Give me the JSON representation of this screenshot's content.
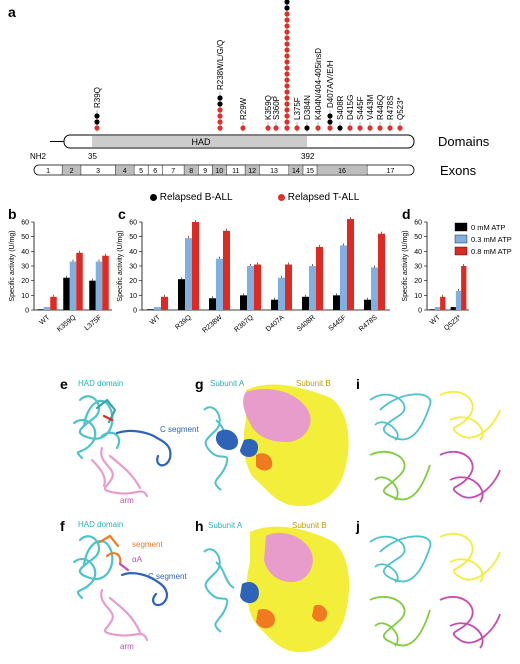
{
  "panels": {
    "a": "a",
    "b": "b",
    "c": "c",
    "d": "d",
    "e": "e",
    "f": "f",
    "g": "g",
    "h": "h",
    "i": "i",
    "j": "j"
  },
  "colors": {
    "b_all": "#000000",
    "t_all": "#e0302a",
    "atp0": "#000000",
    "atp03": "#7fb0e0",
    "atp08": "#dd2a22",
    "had_gray": "#cccccc",
    "exon_gray": "#bdbdbd",
    "cyan": "#4cc3c8",
    "yellow": "#f2ee3a",
    "pink": "#e79ccb",
    "blue": "#2f63b8",
    "orange": "#ef7a22",
    "green": "#7fcc3f",
    "magenta": "#c64ab0"
  },
  "panel_a": {
    "domains_label": "Domains",
    "exons_label": "Exons",
    "nh2": "NH2",
    "had": "HAD",
    "pos_start": "35",
    "pos_end": "392",
    "exons": [
      "1",
      "2",
      "3",
      "4",
      "5",
      "6",
      "7",
      "8",
      "9",
      "10",
      "11",
      "12",
      "13",
      "14",
      "15",
      "16",
      "17"
    ],
    "legend_b": "Relapsed B-ALL",
    "legend_t": "Relapsed T-ALL",
    "mutations": [
      {
        "label": "R39Q",
        "b": 2,
        "t": 1
      },
      {
        "label": "R238W/L/G/Q",
        "b": 2,
        "t": 4
      },
      {
        "label": "R29W",
        "b": 0,
        "t": 1
      },
      {
        "label": "K359Q",
        "b": 0,
        "t": 1
      },
      {
        "label": "S360P",
        "b": 0,
        "t": 1
      },
      {
        "label": "R367Q",
        "b": 14,
        "t": 20
      },
      {
        "label": "L375F",
        "b": 0,
        "t": 1
      },
      {
        "label": "D384N",
        "b": 1,
        "t": 0
      },
      {
        "label": "K404N/404-405insD",
        "b": 0,
        "t": 1
      },
      {
        "label": "D407A/V/E/H",
        "b": 2,
        "t": 1
      },
      {
        "label": "S408R",
        "b": 1,
        "t": 0
      },
      {
        "label": "D415G",
        "b": 0,
        "t": 1
      },
      {
        "label": "S445F",
        "b": 0,
        "t": 1
      },
      {
        "label": "V443M",
        "b": 0,
        "t": 1
      },
      {
        "label": "R446Q",
        "b": 0,
        "t": 1
      },
      {
        "label": "R478S",
        "b": 0,
        "t": 1
      },
      {
        "label": "Q523*",
        "b": 0,
        "t": 1
      }
    ]
  },
  "charts": {
    "ylabel": "Specific activity (U/mg)",
    "yticks": [
      "0",
      "10",
      "20",
      "30",
      "40",
      "50",
      "60"
    ],
    "legend": [
      "0 mM ATP",
      "0.3 mM ATP",
      "0.8 mM ATP"
    ]
  },
  "chart_data": [
    {
      "type": "bar",
      "panel": "b",
      "ylabel": "Specific activity (U/mg)",
      "ylim": [
        0,
        60
      ],
      "categories": [
        "WT",
        "K359Q",
        "L375F"
      ],
      "series": [
        {
          "name": "0 mM ATP",
          "values": [
            0.5,
            22,
            20
          ]
        },
        {
          "name": "0.3 mM ATP",
          "values": [
            2,
            33,
            33
          ]
        },
        {
          "name": "0.8 mM ATP",
          "values": [
            9,
            39,
            37
          ]
        }
      ]
    },
    {
      "type": "bar",
      "panel": "c",
      "ylabel": "Specific activity (U/mg)",
      "ylim": [
        0,
        60
      ],
      "categories": [
        "WT",
        "R39Q",
        "R238W",
        "R367Q",
        "D407A",
        "S408R",
        "S445F",
        "R478S"
      ],
      "series": [
        {
          "name": "0 mM ATP",
          "values": [
            0.5,
            21,
            8,
            10,
            7,
            9,
            10,
            7
          ]
        },
        {
          "name": "0.3 mM ATP",
          "values": [
            2,
            49,
            35,
            30,
            22,
            30,
            44,
            29
          ]
        },
        {
          "name": "0.8 mM ATP",
          "values": [
            9,
            60,
            54,
            31,
            31,
            43,
            62,
            52
          ]
        }
      ]
    },
    {
      "type": "bar",
      "panel": "d",
      "ylabel": "Specific activity (U/mg)",
      "ylim": [
        0,
        60
      ],
      "categories": [
        "WT",
        "Q523*"
      ],
      "series": [
        {
          "name": "0 mM ATP",
          "values": [
            0.5,
            2
          ]
        },
        {
          "name": "0.3 mM ATP",
          "values": [
            2,
            13
          ]
        },
        {
          "name": "0.8 mM ATP",
          "values": [
            9,
            30
          ]
        }
      ]
    }
  ],
  "structures": {
    "e_had": "HAD domain",
    "e_cseg": "C segment",
    "e_arm": "arm",
    "f_had": "HAD domain",
    "f_segment": "segment",
    "f_alpha": "αA",
    "f_cseg": "C segment",
    "f_arm": "arm",
    "g_subA": "Subunit A",
    "g_subB": "Subunit B",
    "h_subA": "Subunit A",
    "h_subB": "Subunit B"
  }
}
